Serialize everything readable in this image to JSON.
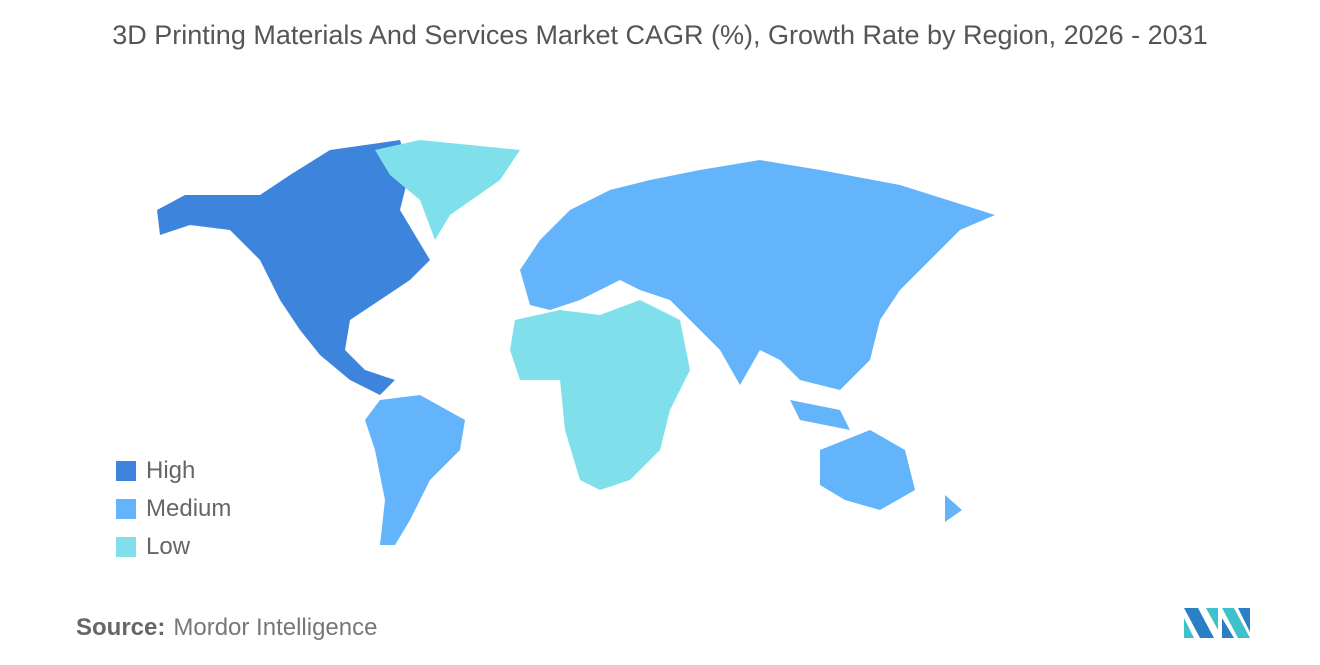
{
  "title": "3D Printing Materials And Services Market CAGR (%), Growth Rate by Region, 2026 - 2031",
  "legend": [
    {
      "label": "High",
      "color": "#3d85dc"
    },
    {
      "label": "Medium",
      "color": "#63b4fa"
    },
    {
      "label": "Low",
      "color": "#7fe0ec"
    }
  ],
  "regions": {
    "north_america": "High",
    "greenland": "Low",
    "south_america": "Medium",
    "europe_asia": "Medium",
    "middle_east_africa": "Low",
    "oceania": "Medium"
  },
  "source_label": "Source:",
  "source": "Mordor Intelligence"
}
